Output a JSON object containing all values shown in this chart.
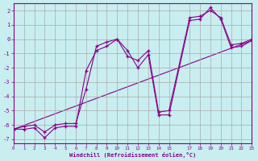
{
  "xlabel": "Windchill (Refroidissement éolien,°C)",
  "bg_color": "#c8eef0",
  "line_color": "#880088",
  "grid_color": "#aaaaaa",
  "series_main": {
    "x": [
      0,
      1,
      2,
      3,
      4,
      5,
      6,
      7,
      8,
      9,
      10,
      11,
      12,
      13,
      14,
      15,
      17,
      18,
      19,
      20,
      21,
      22,
      23
    ],
    "y": [
      -6.3,
      -6.3,
      -6.2,
      -6.9,
      -6.2,
      -6.1,
      -6.1,
      -2.2,
      -0.8,
      -0.5,
      0.0,
      -0.8,
      -2.0,
      -1.1,
      -5.3,
      -5.3,
      1.3,
      1.4,
      2.2,
      1.4,
      -0.6,
      -0.5,
      -0.1
    ]
  },
  "series_secondary": {
    "x": [
      0,
      1,
      2,
      3,
      4,
      5,
      6,
      7,
      8,
      9,
      10,
      11,
      12,
      13,
      14,
      15,
      17,
      18,
      19,
      20,
      21,
      22,
      23
    ],
    "y": [
      -6.3,
      -6.1,
      -6.0,
      -6.5,
      -6.0,
      -5.9,
      -5.9,
      -3.5,
      -0.5,
      -0.2,
      0.0,
      -1.2,
      -1.5,
      -0.8,
      -5.1,
      -5.0,
      1.5,
      1.6,
      2.0,
      1.5,
      -0.4,
      -0.3,
      0.0
    ]
  },
  "series_diag": {
    "x": [
      0,
      23
    ],
    "y": [
      -6.3,
      -0.1
    ]
  },
  "xlim": [
    0,
    23
  ],
  "ylim": [
    -7.3,
    2.5
  ],
  "yticks": [
    -7,
    -6,
    -5,
    -4,
    -3,
    -2,
    -1,
    0,
    1,
    2
  ],
  "xticks": [
    0,
    1,
    2,
    3,
    4,
    5,
    6,
    7,
    8,
    9,
    10,
    11,
    12,
    13,
    14,
    15,
    17,
    18,
    19,
    20,
    21,
    22,
    23
  ]
}
